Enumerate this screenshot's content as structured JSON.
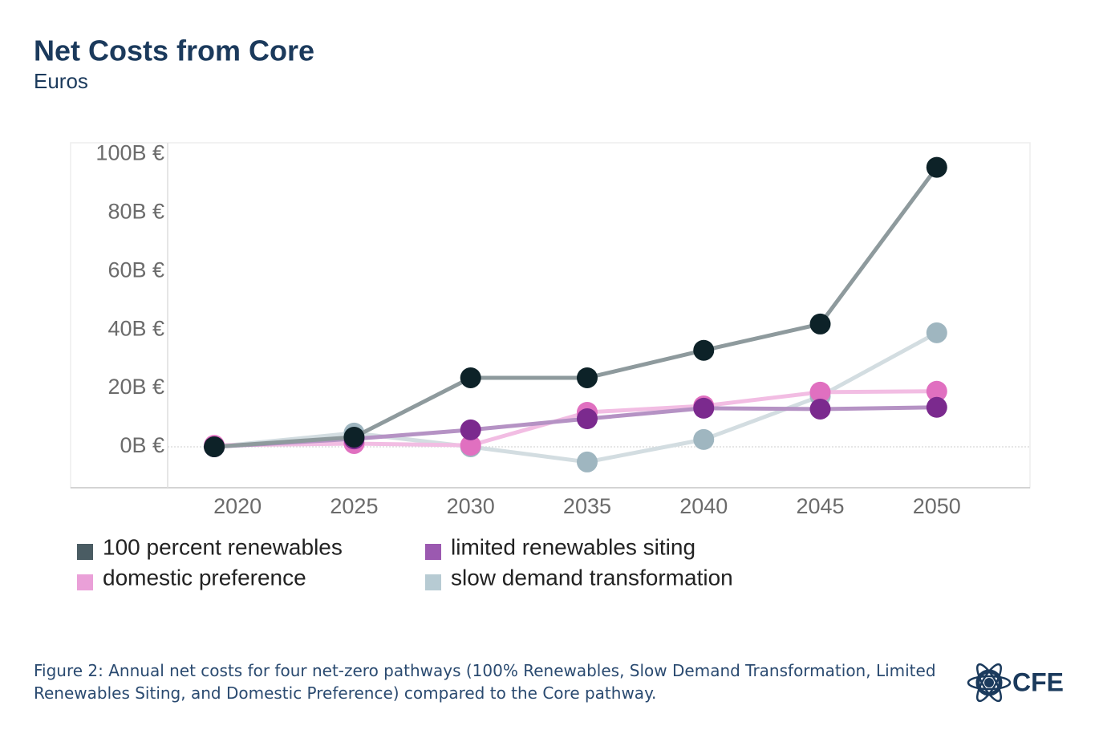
{
  "chart_data": {
    "type": "line",
    "title": "Net Costs from Core",
    "subtitle": "Euros",
    "x": [
      2019,
      2025,
      2030,
      2035,
      2040,
      2045,
      2050
    ],
    "xlim": [
      2017,
      2054
    ],
    "xticks": [
      2020,
      2025,
      2030,
      2035,
      2040,
      2045,
      2050
    ],
    "ylim": [
      -14,
      104
    ],
    "yticks": [
      {
        "value": 0,
        "label": "0B €"
      },
      {
        "value": 20,
        "label": "20B €"
      },
      {
        "value": 40,
        "label": "40B €"
      },
      {
        "value": 60,
        "label": "60B €"
      },
      {
        "value": 80,
        "label": "80B €"
      },
      {
        "value": 100,
        "label": "100B €"
      }
    ],
    "zero_line": true,
    "series": [
      {
        "name": "slow demand transformation",
        "color": "#b7cbd3",
        "line_color": "#d3dde1",
        "marker_color": "#9fb6c0",
        "values": [
          0,
          4.7,
          0,
          -5.2,
          2.5,
          17.3,
          39
        ]
      },
      {
        "name": "domestic preference",
        "color": "#eaa0d8",
        "line_color": "#f2bde3",
        "marker_color": "#e070c0",
        "values": [
          0.5,
          1.1,
          0.5,
          11.8,
          14,
          18.7,
          19
        ]
      },
      {
        "name": "limited renewables siting",
        "color": "#9b59b0",
        "line_color": "#b592c4",
        "marker_color": "#7b2a8e",
        "values": [
          0,
          2.7,
          5.8,
          9.6,
          13.2,
          12.9,
          13.5
        ]
      },
      {
        "name": "100 percent renewables",
        "color": "#4a5c63",
        "line_color": "#8e9a9d",
        "marker_color": "#0d2228",
        "values": [
          0,
          3.3,
          23.6,
          23.6,
          33,
          42,
          95.6
        ]
      }
    ],
    "legend_order": [
      3,
      2,
      1,
      0
    ]
  },
  "caption": "Figure 2:  Annual net costs for four net-zero pathways (100% Renewables, Slow Demand Transformation, Limited Renewables Siting, and Domestic Preference) compared to the Core pathway.",
  "logo": "CFE"
}
